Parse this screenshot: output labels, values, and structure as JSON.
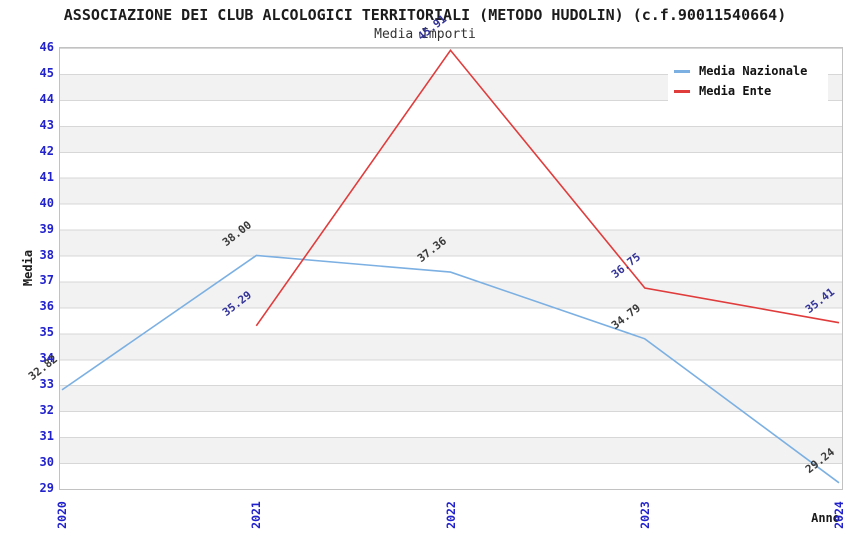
{
  "title": "ASSOCIAZIONE DEI CLUB ALCOLOGICI TERRITORIALI (METODO HUDOLIN) (c.f.90011540664)",
  "subtitle": "Media Importi",
  "chart_data": {
    "type": "line",
    "x": [
      "2020",
      "2021",
      "2022",
      "2023",
      "2024"
    ],
    "xlabel": "Anno",
    "ylabel": "Media",
    "ylim": [
      29,
      46
    ],
    "ytick_step": 1,
    "grid": "horizontal-bands-alternating-white-gray",
    "legend_position": "top-right",
    "tick_color": "#2222CC",
    "series": [
      {
        "name": "Media Nazionale",
        "color": "#7CB0E2",
        "label_color": "#3A3A3A",
        "values": [
          32.82,
          38.0,
          37.36,
          34.79,
          29.24
        ],
        "labels": [
          "32.82",
          "38.00",
          "37.36",
          "34.79",
          "29.24"
        ]
      },
      {
        "name": "Media Ente",
        "color": "#E03C3C",
        "label_color": "#333399",
        "values": [
          null,
          35.29,
          45.91,
          36.75,
          35.41
        ],
        "labels": [
          null,
          "35.29",
          "45.91",
          "36.75",
          "35.41"
        ]
      }
    ]
  }
}
